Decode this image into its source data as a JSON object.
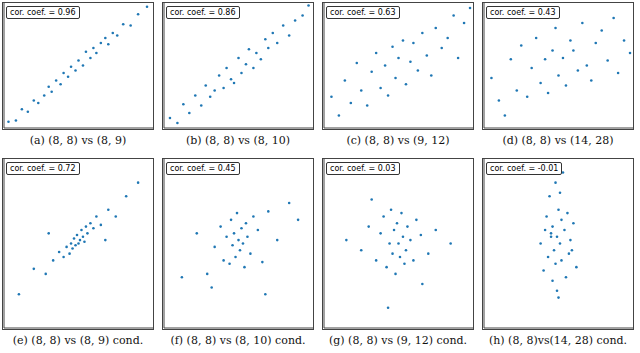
{
  "chart_data": [
    {
      "type": "scatter",
      "title": "(a) (8, 8) vs (8, 9)",
      "annotations": [
        "cor. coef. = 0.96"
      ],
      "color": "#1f77b4",
      "marker": "dot",
      "tick_labels": false,
      "xlim": [
        0,
        10
      ],
      "ylim": [
        0,
        10
      ],
      "xticks": [],
      "yticks": [],
      "x": [
        0.3,
        0.8,
        1.2,
        1.6,
        2.0,
        2.3,
        2.7,
        3.0,
        3.2,
        3.5,
        3.8,
        4.0,
        4.3,
        4.5,
        4.8,
        5.0,
        5.3,
        5.5,
        5.8,
        6.0,
        6.2,
        6.5,
        6.8,
        7.0,
        7.3,
        7.6,
        8.0,
        8.5,
        9.0,
        9.6
      ],
      "y": [
        0.5,
        0.6,
        1.5,
        1.3,
        2.2,
        2.0,
        2.6,
        3.3,
        2.9,
        3.8,
        3.5,
        4.4,
        4.1,
        4.9,
        4.6,
        5.4,
        5.0,
        6.1,
        5.6,
        6.4,
        6.0,
        6.8,
        7.2,
        6.7,
        7.6,
        7.4,
        8.3,
        8.2,
        9.1,
        9.7
      ]
    },
    {
      "type": "scatter",
      "title": "(b) (8, 8) vs (8, 10)",
      "annotations": [
        "cor. coef. = 0.86"
      ],
      "color": "#1f77b4",
      "marker": "dot",
      "tick_labels": false,
      "xlim": [
        0,
        10
      ],
      "ylim": [
        0,
        10
      ],
      "xticks": [],
      "yticks": [],
      "x": [
        0.4,
        0.9,
        1.3,
        1.7,
        2.1,
        2.5,
        2.8,
        3.1,
        3.4,
        3.7,
        4.0,
        4.2,
        4.5,
        4.7,
        5.0,
        5.2,
        5.5,
        5.7,
        6.0,
        6.2,
        6.5,
        6.8,
        7.0,
        7.3,
        7.6,
        8.0,
        8.4,
        8.8,
        9.3,
        9.7
      ],
      "y": [
        0.8,
        0.4,
        1.9,
        1.2,
        2.6,
        1.8,
        3.4,
        2.5,
        3.0,
        4.2,
        3.2,
        4.8,
        3.9,
        3.6,
        5.6,
        4.4,
        5.1,
        6.3,
        4.8,
        6.0,
        5.5,
        7.1,
        6.4,
        7.6,
        6.8,
        8.2,
        7.4,
        8.6,
        9.0,
        9.8
      ]
    },
    {
      "type": "scatter",
      "title": "(c) (8, 8) vs (9, 12)",
      "annotations": [
        "cor. coef. = 0.63"
      ],
      "color": "#1f77b4",
      "marker": "dot",
      "tick_labels": false,
      "xlim": [
        0,
        10
      ],
      "ylim": [
        0,
        10
      ],
      "xticks": [],
      "yticks": [],
      "x": [
        0.5,
        1.0,
        1.4,
        1.8,
        2.2,
        2.5,
        2.9,
        3.2,
        3.5,
        3.8,
        4.1,
        4.3,
        4.6,
        4.8,
        5.0,
        5.3,
        5.5,
        5.8,
        6.0,
        6.3,
        6.6,
        6.9,
        7.2,
        7.5,
        7.9,
        8.3,
        8.7,
        9.0,
        9.4,
        9.8
      ],
      "y": [
        2.5,
        1.0,
        3.8,
        2.0,
        5.2,
        3.0,
        1.8,
        4.5,
        6.0,
        3.2,
        5.0,
        2.6,
        6.5,
        4.0,
        5.6,
        7.0,
        3.5,
        5.3,
        6.8,
        4.6,
        7.6,
        5.8,
        4.2,
        8.0,
        6.4,
        7.2,
        9.0,
        5.6,
        8.4,
        9.6
      ]
    },
    {
      "type": "scatter",
      "title": "(d) (8, 8) vs (14, 28)",
      "annotations": [
        "cor. coef. = 0.43"
      ],
      "color": "#1f77b4",
      "marker": "dot",
      "tick_labels": false,
      "xlim": [
        0,
        10
      ],
      "ylim": [
        0,
        10
      ],
      "xticks": [],
      "yticks": [],
      "x": [
        0.5,
        1.0,
        1.4,
        1.8,
        2.2,
        2.5,
        2.9,
        3.2,
        3.5,
        3.8,
        4.1,
        4.3,
        4.6,
        4.8,
        5.0,
        5.3,
        5.5,
        5.8,
        6.0,
        6.3,
        6.6,
        6.9,
        7.2,
        7.5,
        7.9,
        8.3,
        8.7,
        9.0,
        9.4,
        9.8
      ],
      "y": [
        4.0,
        2.2,
        1.0,
        5.5,
        3.0,
        6.6,
        2.5,
        4.8,
        7.2,
        3.6,
        5.5,
        2.8,
        6.2,
        8.0,
        4.2,
        5.6,
        3.4,
        7.0,
        6.2,
        4.6,
        8.4,
        5.0,
        3.8,
        6.8,
        7.8,
        5.4,
        8.8,
        4.4,
        7.0,
        6.0
      ]
    },
    {
      "type": "scatter",
      "title": "(e) (8, 8) vs (8, 9) cond.",
      "annotations": [
        "cor. coef. = 0.72"
      ],
      "color": "#1f77b4",
      "marker": "dot",
      "tick_labels": false,
      "xlim": [
        0,
        10
      ],
      "ylim": [
        0,
        10
      ],
      "xticks": [],
      "yticks": [],
      "x": [
        1.0,
        2.0,
        2.8,
        3.3,
        3.7,
        4.0,
        4.2,
        4.4,
        4.5,
        4.6,
        4.7,
        4.8,
        4.9,
        5.0,
        5.1,
        5.2,
        5.3,
        5.4,
        5.5,
        5.6,
        5.8,
        6.0,
        6.2,
        6.5,
        7.0,
        7.5,
        8.2,
        3.0,
        6.8,
        9.0
      ],
      "y": [
        2.0,
        3.5,
        3.2,
        4.0,
        4.5,
        4.2,
        4.8,
        4.4,
        5.0,
        4.7,
        5.3,
        4.9,
        5.5,
        5.0,
        5.2,
        5.8,
        5.4,
        5.1,
        6.0,
        5.6,
        6.2,
        5.9,
        6.6,
        6.1,
        7.0,
        6.6,
        7.8,
        5.6,
        5.2,
        8.6
      ]
    },
    {
      "type": "scatter",
      "title": "(f) (8, 8) vs (8, 10) cond.",
      "annotations": [
        "cor. coef. = 0.45"
      ],
      "color": "#1f77b4",
      "marker": "dot",
      "tick_labels": false,
      "xlim": [
        0,
        10
      ],
      "ylim": [
        0,
        10
      ],
      "xticks": [],
      "yticks": [],
      "x": [
        1.2,
        2.2,
        2.9,
        3.4,
        3.8,
        4.0,
        4.2,
        4.4,
        4.5,
        4.6,
        4.7,
        4.8,
        4.9,
        5.0,
        5.1,
        5.2,
        5.3,
        5.4,
        5.5,
        5.6,
        5.8,
        6.0,
        6.3,
        6.6,
        7.0,
        7.6,
        8.4,
        3.2,
        6.8,
        9.0
      ],
      "y": [
        3.0,
        5.6,
        3.2,
        4.8,
        6.0,
        4.0,
        5.4,
        3.8,
        6.4,
        4.9,
        5.6,
        4.2,
        6.8,
        5.2,
        4.6,
        5.9,
        5.0,
        3.6,
        6.2,
        5.4,
        4.4,
        6.6,
        5.8,
        3.9,
        6.9,
        5.2,
        7.4,
        2.4,
        2.0,
        6.4
      ]
    },
    {
      "type": "scatter",
      "title": "(g) (8, 8) vs (9, 12) cond.",
      "annotations": [
        "cor. coef. = 0.03"
      ],
      "color": "#1f77b4",
      "marker": "dot",
      "tick_labels": false,
      "xlim": [
        0,
        10
      ],
      "ylim": [
        0,
        10
      ],
      "xticks": [],
      "yticks": [],
      "x": [
        1.5,
        2.5,
        3.0,
        3.5,
        3.8,
        4.0,
        4.2,
        4.4,
        4.5,
        4.6,
        4.7,
        4.8,
        4.9,
        5.0,
        5.1,
        5.2,
        5.3,
        5.4,
        5.5,
        5.6,
        5.8,
        6.0,
        6.2,
        6.5,
        7.0,
        7.5,
        8.5,
        3.2,
        6.6,
        4.3
      ],
      "y": [
        5.2,
        4.6,
        6.0,
        4.0,
        5.6,
        6.6,
        3.6,
        5.0,
        7.0,
        4.4,
        5.8,
        3.2,
        6.2,
        5.0,
        4.2,
        6.8,
        5.4,
        3.8,
        4.6,
        6.0,
        5.2,
        4.0,
        6.4,
        5.5,
        4.4,
        5.8,
        5.0,
        7.6,
        2.6,
        1.2
      ]
    },
    {
      "type": "scatter",
      "title": "(h) (8, 8)vs(14, 28) cond.",
      "annotations": [
        "cor. coef. = -0.01"
      ],
      "color": "#1f77b4",
      "marker": "dot",
      "tick_labels": false,
      "xlim": [
        0,
        10
      ],
      "ylim": [
        0,
        10
      ],
      "xticks": [],
      "yticks": [],
      "x": [
        3.8,
        4.0,
        4.2,
        4.3,
        4.4,
        4.5,
        4.6,
        4.6,
        4.7,
        4.8,
        4.8,
        4.9,
        5.0,
        5.0,
        5.1,
        5.2,
        5.2,
        5.3,
        5.4,
        5.5,
        5.6,
        5.7,
        5.8,
        6.0,
        6.2,
        4.1,
        5.9,
        4.9,
        5.1,
        4.5
      ],
      "y": [
        5.0,
        3.4,
        6.6,
        4.2,
        7.8,
        5.6,
        2.8,
        6.0,
        4.6,
        8.6,
        3.8,
        5.4,
        7.0,
        1.8,
        5.0,
        6.4,
        4.0,
        9.2,
        5.8,
        3.0,
        6.8,
        4.4,
        5.2,
        6.2,
        3.6,
        5.8,
        4.6,
        2.2,
        8.0,
        5.4
      ]
    }
  ]
}
